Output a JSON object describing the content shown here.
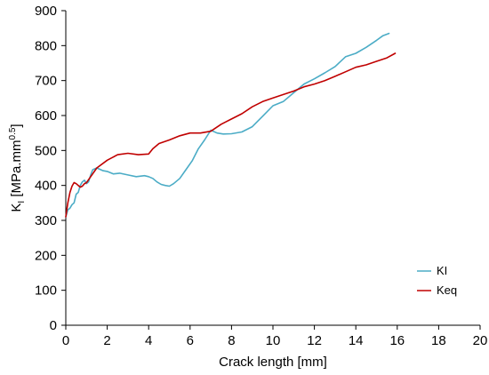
{
  "chart_data": {
    "type": "line",
    "xlabel": "Crack length [mm]",
    "ylabel_main": "K",
    "ylabel_sub": "I",
    "ylabel_rest": " [MPa.mm",
    "ylabel_sup": "0.5",
    "ylabel_end": "]",
    "xlim": [
      0,
      20
    ],
    "ylim": [
      0,
      900
    ],
    "xticks": [
      0,
      2,
      4,
      6,
      8,
      10,
      12,
      14,
      16,
      18,
      20
    ],
    "yticks": [
      0,
      100,
      200,
      300,
      400,
      500,
      600,
      700,
      800,
      900
    ],
    "grid": false,
    "legend_position": "right",
    "series": [
      {
        "name": "KI",
        "color": "#4bacc6",
        "x": [
          0.0,
          0.1,
          0.2,
          0.3,
          0.4,
          0.5,
          0.6,
          0.7,
          0.8,
          0.9,
          1.0,
          1.1,
          1.2,
          1.3,
          1.5,
          1.8,
          2.0,
          2.3,
          2.6,
          3.0,
          3.4,
          3.8,
          4.0,
          4.2,
          4.4,
          4.6,
          4.8,
          5.0,
          5.2,
          5.5,
          5.8,
          6.1,
          6.4,
          6.7,
          7.0,
          7.3,
          7.6,
          8.0,
          8.5,
          9.0,
          9.5,
          10.0,
          10.5,
          11.0,
          11.5,
          12.0,
          12.5,
          13.0,
          13.5,
          14.0,
          14.5,
          15.0,
          15.3,
          15.6
        ],
        "y": [
          310,
          330,
          335,
          345,
          350,
          375,
          380,
          400,
          410,
          415,
          405,
          410,
          430,
          445,
          450,
          442,
          440,
          433,
          435,
          430,
          425,
          428,
          425,
          420,
          410,
          403,
          400,
          398,
          405,
          420,
          445,
          470,
          505,
          530,
          558,
          550,
          547,
          548,
          553,
          568,
          598,
          628,
          640,
          665,
          690,
          705,
          722,
          740,
          768,
          778,
          795,
          815,
          828,
          835
        ]
      },
      {
        "name": "Keq",
        "color": "#c00000",
        "x": [
          0.0,
          0.1,
          0.2,
          0.3,
          0.4,
          0.5,
          0.6,
          0.7,
          0.8,
          0.9,
          1.0,
          1.2,
          1.5,
          2.0,
          2.5,
          3.0,
          3.5,
          4.0,
          4.2,
          4.5,
          5.0,
          5.5,
          6.0,
          6.5,
          7.0,
          7.5,
          8.0,
          8.5,
          9.0,
          9.5,
          10.0,
          10.5,
          11.0,
          11.5,
          12.0,
          12.5,
          13.0,
          13.5,
          14.0,
          14.5,
          15.0,
          15.5,
          15.9
        ],
        "y": [
          310,
          350,
          380,
          398,
          408,
          405,
          400,
          395,
          398,
          405,
          408,
          425,
          450,
          472,
          488,
          492,
          488,
          490,
          505,
          520,
          530,
          542,
          550,
          550,
          555,
          575,
          590,
          605,
          625,
          640,
          650,
          660,
          670,
          682,
          690,
          700,
          712,
          725,
          738,
          745,
          755,
          765,
          778
        ]
      }
    ]
  }
}
